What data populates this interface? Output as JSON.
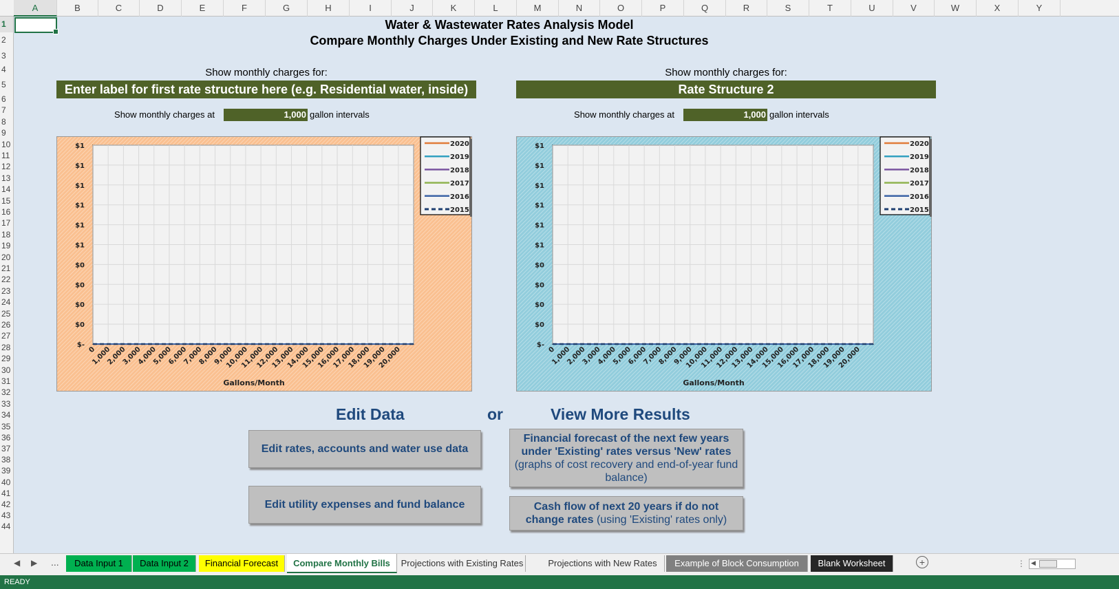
{
  "columns": [
    "A",
    "B",
    "C",
    "D",
    "E",
    "F",
    "G",
    "H",
    "I",
    "J",
    "K",
    "L",
    "M",
    "N",
    "O",
    "P",
    "Q",
    "R",
    "S",
    "T",
    "U",
    "V",
    "W",
    "X",
    "Y"
  ],
  "rows": [
    "1",
    "2",
    "3",
    "4",
    "5",
    "6",
    "7",
    "8",
    "9",
    "10",
    "11",
    "12",
    "13",
    "14",
    "15",
    "16",
    "17",
    "18",
    "19",
    "20",
    "21",
    "22",
    "23",
    "24",
    "25",
    "26",
    "27",
    "28",
    "29",
    "30",
    "31",
    "32",
    "33",
    "34",
    "35",
    "36",
    "37",
    "38",
    "39",
    "40",
    "41",
    "42",
    "43",
    "44"
  ],
  "selected_cell": "A1",
  "title": {
    "line1": "Water & Wastewater Rates Analysis Model",
    "line2": "Compare Monthly Charges Under Existing and New Rate Structures"
  },
  "left_panel": {
    "show_label": "Show monthly charges for:",
    "structure_label": "Enter label for first rate structure here (e.g. Residential water, inside)",
    "interval_prefix": "Show monthly charges at",
    "interval_value": "1,000",
    "interval_suffix": "gallon intervals"
  },
  "right_panel": {
    "show_label": "Show monthly charges for:",
    "structure_label": "Rate Structure 2",
    "interval_prefix": "Show monthly charges at",
    "interval_value": "1,000",
    "interval_suffix": "gallon intervals"
  },
  "colors": {
    "left_chart_bg": "#fac090",
    "right_chart_bg": "#92cddc",
    "banner": "#4f6228",
    "accent": "#217346",
    "heading": "#1f497d"
  },
  "chart_data": [
    {
      "type": "line",
      "xlabel": "Gallons/Month",
      "ylabel": "",
      "y_tick_labels": [
        "$1",
        "$1",
        "$1",
        "$1",
        "$1",
        "$1",
        "$0",
        "$0",
        "$0",
        "$0",
        "$-"
      ],
      "x": [
        "0",
        "1,000",
        "2,000",
        "3,000",
        "4,000",
        "5,000",
        "6,000",
        "7,000",
        "8,000",
        "9,000",
        "10,000",
        "11,000",
        "12,000",
        "13,000",
        "14,000",
        "15,000",
        "16,000",
        "17,000",
        "18,000",
        "19,000",
        "20,000"
      ],
      "series": [
        {
          "name": "2020",
          "color": "#e07b39",
          "values": [
            0,
            0,
            0,
            0,
            0,
            0,
            0,
            0,
            0,
            0,
            0,
            0,
            0,
            0,
            0,
            0,
            0,
            0,
            0,
            0,
            0
          ]
        },
        {
          "name": "2019",
          "color": "#31a0c0",
          "values": [
            0,
            0,
            0,
            0,
            0,
            0,
            0,
            0,
            0,
            0,
            0,
            0,
            0,
            0,
            0,
            0,
            0,
            0,
            0,
            0,
            0
          ]
        },
        {
          "name": "2018",
          "color": "#7a55a0",
          "values": [
            0,
            0,
            0,
            0,
            0,
            0,
            0,
            0,
            0,
            0,
            0,
            0,
            0,
            0,
            0,
            0,
            0,
            0,
            0,
            0,
            0
          ]
        },
        {
          "name": "2017",
          "color": "#8fb34f",
          "values": [
            0,
            0,
            0,
            0,
            0,
            0,
            0,
            0,
            0,
            0,
            0,
            0,
            0,
            0,
            0,
            0,
            0,
            0,
            0,
            0,
            0
          ]
        },
        {
          "name": "2016",
          "color": "#3b63a5",
          "values": [
            0,
            0,
            0,
            0,
            0,
            0,
            0,
            0,
            0,
            0,
            0,
            0,
            0,
            0,
            0,
            0,
            0,
            0,
            0,
            0,
            0
          ]
        },
        {
          "name": "2015",
          "color": "#1f3f70",
          "dashed": true,
          "values": [
            0,
            0,
            0,
            0,
            0,
            0,
            0,
            0,
            0,
            0,
            0,
            0,
            0,
            0,
            0,
            0,
            0,
            0,
            0,
            0,
            0
          ]
        }
      ],
      "grid": true,
      "legend": "top-right"
    },
    {
      "type": "line",
      "xlabel": "Gallons/Month",
      "ylabel": "",
      "y_tick_labels": [
        "$1",
        "$1",
        "$1",
        "$1",
        "$1",
        "$1",
        "$0",
        "$0",
        "$0",
        "$0",
        "$-"
      ],
      "x": [
        "0",
        "1,000",
        "2,000",
        "3,000",
        "4,000",
        "5,000",
        "6,000",
        "7,000",
        "8,000",
        "9,000",
        "10,000",
        "11,000",
        "12,000",
        "13,000",
        "14,000",
        "15,000",
        "16,000",
        "17,000",
        "18,000",
        "19,000",
        "20,000"
      ],
      "series": [
        {
          "name": "2020",
          "color": "#e07b39",
          "values": [
            0,
            0,
            0,
            0,
            0,
            0,
            0,
            0,
            0,
            0,
            0,
            0,
            0,
            0,
            0,
            0,
            0,
            0,
            0,
            0,
            0
          ]
        },
        {
          "name": "2019",
          "color": "#31a0c0",
          "values": [
            0,
            0,
            0,
            0,
            0,
            0,
            0,
            0,
            0,
            0,
            0,
            0,
            0,
            0,
            0,
            0,
            0,
            0,
            0,
            0,
            0
          ]
        },
        {
          "name": "2018",
          "color": "#7a55a0",
          "values": [
            0,
            0,
            0,
            0,
            0,
            0,
            0,
            0,
            0,
            0,
            0,
            0,
            0,
            0,
            0,
            0,
            0,
            0,
            0,
            0,
            0
          ]
        },
        {
          "name": "2017",
          "color": "#8fb34f",
          "values": [
            0,
            0,
            0,
            0,
            0,
            0,
            0,
            0,
            0,
            0,
            0,
            0,
            0,
            0,
            0,
            0,
            0,
            0,
            0,
            0,
            0
          ]
        },
        {
          "name": "2016",
          "color": "#3b63a5",
          "values": [
            0,
            0,
            0,
            0,
            0,
            0,
            0,
            0,
            0,
            0,
            0,
            0,
            0,
            0,
            0,
            0,
            0,
            0,
            0,
            0,
            0
          ]
        },
        {
          "name": "2015",
          "color": "#1f3f70",
          "dashed": true,
          "values": [
            0,
            0,
            0,
            0,
            0,
            0,
            0,
            0,
            0,
            0,
            0,
            0,
            0,
            0,
            0,
            0,
            0,
            0,
            0,
            0,
            0
          ]
        }
      ],
      "grid": true,
      "legend": "top-right"
    }
  ],
  "actions": {
    "edit_heading": "Edit Data",
    "or_label": "or",
    "view_heading": "View More Results",
    "edit_rates": "Edit rates, accounts and water use data",
    "edit_expenses": "Edit utility expenses and fund balance",
    "forecast_bold": "Financial forecast of the next few years under 'Existing' rates versus 'New' rates",
    "forecast_rest": "(graphs of cost recovery and end-of-year fund balance)",
    "cashflow_bold": "Cash flow of next 20 years if do not change rates",
    "cashflow_rest": "(using 'Existing' rates only)"
  },
  "tabs": [
    {
      "label": "Data Input 1",
      "bg": "#00b050",
      "fg": "#000000"
    },
    {
      "label": "Data Input 2",
      "bg": "#00b050",
      "fg": "#000000"
    },
    {
      "label": "Financial Forecast",
      "bg": "#ffff00",
      "fg": "#000000"
    },
    {
      "label": "Compare Monthly Bills",
      "bg": "#ffffff",
      "fg": "#217346",
      "active": true
    },
    {
      "label": "Projections with Existing Rates",
      "bg": "#f0f0f0",
      "fg": "#333333"
    },
    {
      "label": "Projections with New Rates",
      "bg": "#f0f0f0",
      "fg": "#333333"
    },
    {
      "label": "Example of Block Consumption",
      "bg": "#808080",
      "fg": "#ffffff"
    },
    {
      "label": "Blank Worksheet",
      "bg": "#262626",
      "fg": "#ffffff"
    }
  ],
  "tab_nav": {
    "prev": "◀",
    "next": "▶",
    "more": "...",
    "add": "+"
  },
  "status": "READY"
}
